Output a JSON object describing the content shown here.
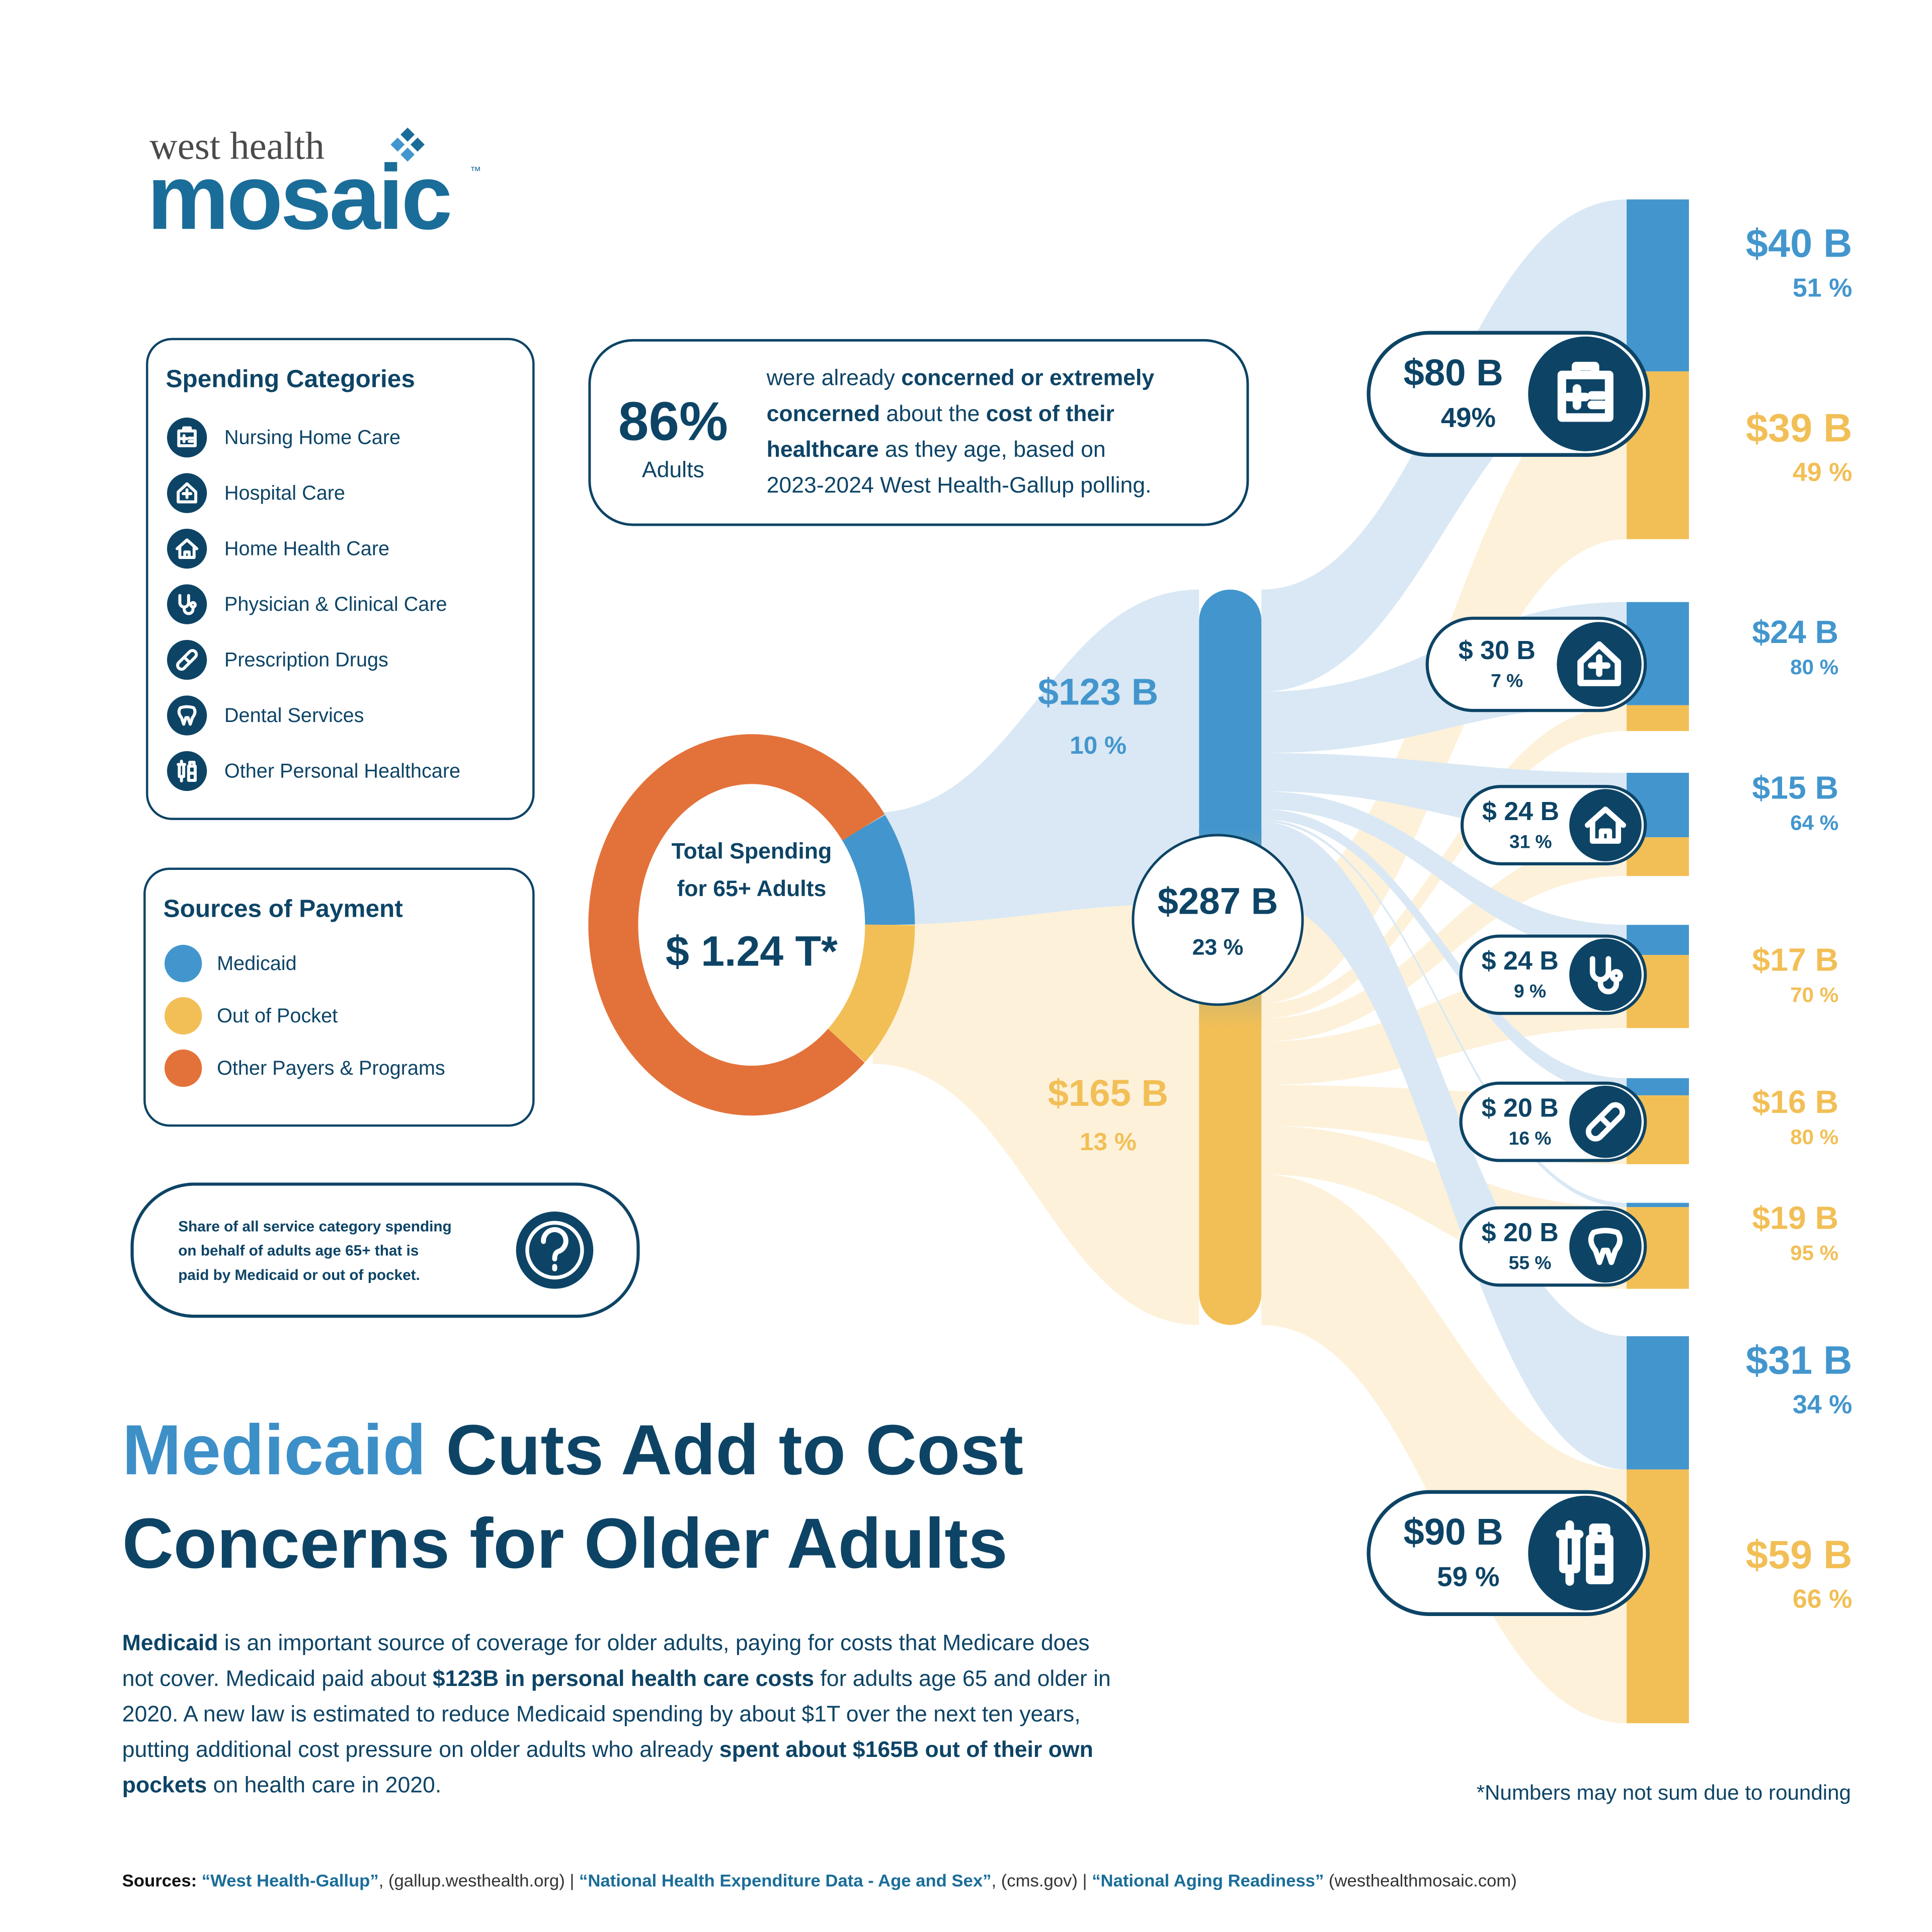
{
  "logo": {
    "top": "west health",
    "name": "mosaic",
    "mark": "™"
  },
  "stat": {
    "value": "86%",
    "label": "Adults",
    "lines": [
      [
        {
          "text": "were already "
        },
        {
          "text": "concerned or extremely",
          "bold": true
        }
      ],
      [
        {
          "text": "concerned",
          "bold": true
        },
        {
          "text": " about the "
        },
        {
          "text": "cost of their",
          "bold": true
        }
      ],
      [
        {
          "text": "healthcare",
          "bold": true
        },
        {
          "text": " as they age, based on"
        }
      ],
      [
        {
          "text": "2023-2024 West Health-Gallup polling."
        }
      ]
    ]
  },
  "note": [
    "Share of all service category spending",
    "on behalf of adults age 65+ that is",
    "paid by Medicaid or out of pocket."
  ],
  "headline": [
    [
      {
        "text": "Medicaid",
        "accent": true
      },
      {
        "text": " Cuts Add to Cost"
      }
    ],
    [
      {
        "text": "Concerns for Older Adults"
      }
    ]
  ],
  "body": [
    [
      {
        "text": "Medicaid",
        "bold": true
      },
      {
        "text": " is an important source of coverage for older adults, paying for costs that Medicare does"
      }
    ],
    [
      {
        "text": "not cover. Medicaid paid about "
      },
      {
        "text": "$123B in personal health care costs",
        "bold": true
      },
      {
        "text": " for adults age 65 and older in"
      }
    ],
    [
      {
        "text": "2020. A new law is estimated to reduce Medicaid spending by about $1T over the next ten years,"
      }
    ],
    [
      {
        "text": "putting additional cost pressure on older adults who already "
      },
      {
        "text": "spent about $165B out of their own",
        "bold": true
      }
    ],
    [
      {
        "text": "pockets",
        "bold": true
      },
      {
        "text": " on health care in 2020."
      }
    ]
  ],
  "footnote": "*Numbers may not sum due to rounding",
  "sources": [
    {
      "text": "Sources: ",
      "bold": true,
      "dark": true
    },
    {
      "text": "“West Health-Gallup”",
      "bold": true
    },
    {
      "text": ", (gallup.westhealth.org) | "
    },
    {
      "text": "“National Health Expenditure Data - Age and Sex”",
      "bold": true
    },
    {
      "text": ", (cms.gov) | "
    },
    {
      "text": "“National Aging Readiness”",
      "bold": true
    },
    {
      "text": " (westhealthmosaic.com)"
    }
  ],
  "chart_data": {
    "type": "sankey",
    "target_legend_title": "Spending Categories",
    "source_legend_title": "Sources of Payment",
    "center_label": [
      "Total Spending",
      "for 65+ Adults"
    ],
    "total_label": "$ 1.24 T*",
    "sources": [
      {
        "name": "Medicaid",
        "color": "#4396cd",
        "flow_color": "#d9e8f4",
        "amount": 123,
        "amount_label": "$123 B",
        "share": 10,
        "share_label": "10 %"
      },
      {
        "name": "Out of Pocket",
        "color": "#f2bf56",
        "flow_color": "#fdf1da",
        "amount": 165,
        "amount_label": "$165 B",
        "share": 13,
        "share_label": "13 %"
      },
      {
        "name": "Other Payers & Programs",
        "color": "#e3723a",
        "share": 77
      }
    ],
    "hub": {
      "amount": 287,
      "amount_label": "$287 B",
      "share": 23,
      "share_label": "23 %"
    },
    "targets": [
      {
        "name": "Nursing Home Care",
        "total": 80,
        "total_label": "$80 B",
        "share": 49,
        "share_label": "49%",
        "medicaid": {
          "value": 40,
          "label": "$40 B",
          "share": 51,
          "share_label": "51 %"
        },
        "oop": {
          "value": 39,
          "label": "$39 B",
          "share": 49,
          "share_label": "49 %"
        }
      },
      {
        "name": "Hospital Care",
        "total": 30,
        "total_label": "$ 30 B",
        "share": 7,
        "share_label": "7 %",
        "medicaid": {
          "value": 24,
          "label": "$24 B",
          "share": 80,
          "share_label": "80 %"
        },
        "oop": {
          "value": 6
        }
      },
      {
        "name": "Home Health Care",
        "total": 24,
        "total_label": "$ 24 B",
        "share": 31,
        "share_label": "31 %",
        "medicaid": {
          "value": 15,
          "label": "$15 B",
          "share": 64,
          "share_label": "64 %"
        },
        "oop": {
          "value": 9
        }
      },
      {
        "name": "Physician & Clinical Care",
        "total": 24,
        "total_label": "$ 24 B",
        "share": 9,
        "share_label": "9 %",
        "medicaid": {
          "value": 7
        },
        "oop": {
          "value": 17,
          "label": "$17 B",
          "share": 70,
          "share_label": "70 %"
        }
      },
      {
        "name": "Prescription Drugs",
        "total": 20,
        "total_label": "$ 20 B",
        "share": 16,
        "share_label": "16 %",
        "medicaid": {
          "value": 4
        },
        "oop": {
          "value": 16,
          "label": "$16 B",
          "share": 80,
          "share_label": "80 %"
        }
      },
      {
        "name": "Dental Services",
        "total": 20,
        "total_label": "$ 20 B",
        "share": 55,
        "share_label": "55 %",
        "medicaid": {
          "value": 1
        },
        "oop": {
          "value": 19,
          "label": "$19 B",
          "share": 95,
          "share_label": "95 %"
        }
      },
      {
        "name": "Other Personal Healthcare",
        "total": 90,
        "total_label": "$90 B",
        "share": 59,
        "share_label": "59 %",
        "medicaid": {
          "value": 31,
          "label": "$31 B",
          "share": 34,
          "share_label": "34 %"
        },
        "oop": {
          "value": 59,
          "label": "$59 B",
          "share": 66,
          "share_label": "66 %"
        }
      }
    ]
  }
}
